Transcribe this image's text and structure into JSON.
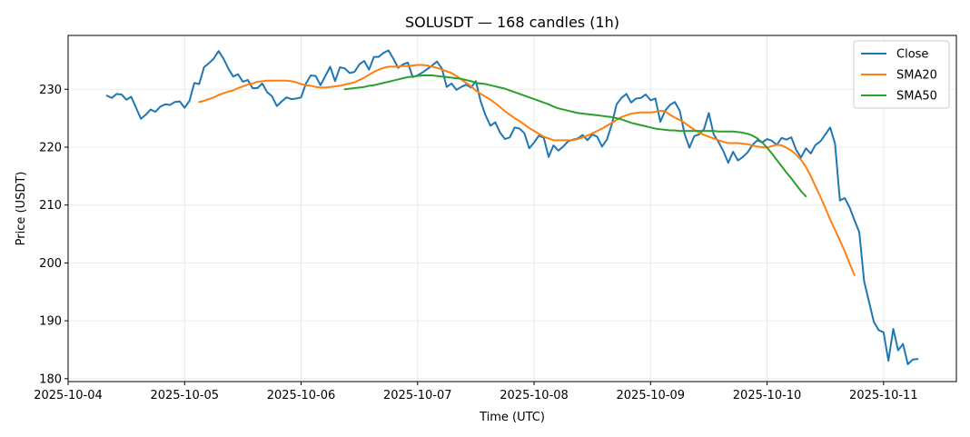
{
  "chart_data": {
    "type": "line",
    "title": "SOLUSDT — 168 candles (1h)",
    "xlabel": "Time (UTC)",
    "ylabel": "Price (USDT)",
    "x_ticks": [
      "2025-10-04",
      "2025-10-05",
      "2025-10-06",
      "2025-10-07",
      "2025-10-08",
      "2025-10-09",
      "2025-10-10",
      "2025-10-11"
    ],
    "x_range": [
      "2025-10-04 00:00",
      "2025-10-11 15:00"
    ],
    "y_ticks": [
      180,
      190,
      200,
      210,
      220,
      230
    ],
    "ylim": [
      179.5,
      239.3
    ],
    "grid": true,
    "legend_position": "top-right",
    "series": [
      {
        "name": "Close",
        "color": "#1f77b4",
        "start": "2025-10-04 08:00",
        "step_hours": 1,
        "values": [
          228.9,
          228.5,
          229.2,
          229.1,
          228.2,
          228.7,
          226.8,
          224.9,
          225.6,
          226.5,
          226.1,
          227.0,
          227.4,
          227.3,
          227.8,
          227.9,
          226.8,
          228.0,
          231.1,
          230.9,
          233.8,
          234.5,
          235.3,
          236.6,
          235.3,
          233.6,
          232.2,
          232.6,
          231.3,
          231.6,
          230.2,
          230.2,
          231.0,
          229.5,
          228.8,
          227.1,
          227.9,
          228.6,
          228.3,
          228.4,
          228.6,
          231.0,
          232.4,
          232.3,
          230.7,
          232.3,
          233.9,
          231.4,
          233.8,
          233.6,
          232.8,
          233.0,
          234.3,
          234.9,
          233.4,
          235.6,
          235.6,
          236.3,
          236.7,
          235.3,
          233.7,
          234.3,
          234.6,
          232.1,
          232.4,
          232.9,
          233.5,
          234.1,
          234.8,
          233.6,
          230.4,
          231.0,
          229.9,
          230.4,
          230.8,
          230.3,
          231.4,
          227.9,
          225.5,
          223.7,
          224.3,
          222.5,
          221.4,
          221.7,
          223.4,
          223.2,
          222.4,
          219.8,
          220.8,
          222.0,
          221.6,
          218.3,
          220.3,
          219.4,
          220.1,
          221.0,
          221.3,
          221.5,
          222.1,
          221.2,
          222.2,
          221.8,
          220.1,
          221.3,
          223.9,
          227.4,
          228.5,
          229.2,
          227.7,
          228.4,
          228.5,
          229.1,
          228.1,
          228.4,
          224.4,
          226.3,
          227.3,
          227.8,
          226.3,
          222.3,
          219.9,
          221.9,
          222.2,
          223.1,
          225.9,
          222.2,
          220.9,
          219.3,
          217.3,
          219.2,
          217.7,
          218.3,
          219.1,
          220.4,
          221.2,
          220.8,
          221.4,
          221.1,
          220.4,
          221.6,
          221.3,
          221.7,
          219.5,
          218.2,
          219.8,
          218.9,
          220.4,
          221.0,
          222.2,
          223.4,
          220.6,
          210.8,
          211.2,
          209.6,
          207.4,
          205.3,
          196.8,
          193.3,
          189.8,
          188.4,
          188.0,
          183.1,
          188.6,
          184.9,
          186.0,
          182.5,
          183.3,
          183.4
        ]
      },
      {
        "name": "SMA20",
        "color": "#ff7f0e",
        "start": "2025-10-05 03:00",
        "step_hours": 1,
        "values": [
          227.8,
          228.0,
          228.3,
          228.6,
          229.0,
          229.3,
          229.6,
          229.8,
          230.2,
          230.5,
          230.8,
          231.0,
          231.3,
          231.4,
          231.5,
          231.5,
          231.5,
          231.5,
          231.5,
          231.4,
          231.2,
          230.9,
          230.7,
          230.6,
          230.4,
          230.3,
          230.3,
          230.4,
          230.5,
          230.6,
          230.8,
          231.0,
          231.2,
          231.6,
          232.0,
          232.5,
          233.0,
          233.4,
          233.7,
          233.9,
          233.9,
          233.9,
          234.0,
          234.0,
          234.1,
          234.2,
          234.2,
          234.1,
          233.9,
          233.7,
          233.4,
          233.1,
          232.8,
          232.3,
          231.7,
          231.1,
          230.5,
          229.8,
          229.2,
          228.7,
          228.2,
          227.6,
          226.9,
          226.2,
          225.6,
          225.0,
          224.5,
          223.9,
          223.3,
          222.8,
          222.3,
          221.8,
          221.5,
          221.2,
          221.2,
          221.2,
          221.2,
          221.2,
          221.4,
          221.7,
          222.0,
          222.4,
          222.8,
          223.2,
          223.7,
          224.2,
          224.7,
          225.2,
          225.5,
          225.8,
          225.9,
          226.0,
          226.0,
          226.0,
          226.1,
          226.3,
          226.2,
          225.6,
          225.1,
          224.7,
          224.2,
          223.6,
          223.0,
          222.5,
          222.1,
          221.8,
          221.5,
          221.2,
          220.9,
          220.7,
          220.7,
          220.7,
          220.6,
          220.5,
          220.3,
          220.1,
          220.0,
          219.9,
          220.2,
          220.4,
          220.3,
          219.9,
          219.4,
          218.7,
          217.8,
          216.6,
          215.0,
          213.2,
          211.4,
          209.5,
          207.5,
          205.7,
          203.9,
          202.0,
          199.9,
          197.9
        ]
      },
      {
        "name": "SMA50",
        "color": "#2ca02c",
        "start": "2025-10-06 09:00",
        "step_hours": 1,
        "values": [
          230.0,
          230.1,
          230.2,
          230.3,
          230.4,
          230.6,
          230.7,
          230.9,
          231.1,
          231.3,
          231.5,
          231.7,
          231.9,
          232.1,
          232.2,
          232.3,
          232.4,
          232.4,
          232.4,
          232.3,
          232.2,
          232.1,
          232.0,
          231.9,
          231.8,
          231.6,
          231.4,
          231.1,
          231.0,
          230.9,
          230.7,
          230.5,
          230.3,
          230.1,
          229.8,
          229.5,
          229.2,
          228.9,
          228.6,
          228.3,
          228.0,
          227.7,
          227.4,
          227.0,
          226.7,
          226.5,
          226.3,
          226.1,
          225.9,
          225.8,
          225.7,
          225.6,
          225.5,
          225.4,
          225.3,
          225.2,
          225.0,
          224.8,
          224.5,
          224.2,
          224.0,
          223.8,
          223.6,
          223.4,
          223.2,
          223.1,
          223.0,
          222.9,
          222.9,
          222.8,
          222.8,
          222.8,
          222.8,
          222.8,
          222.8,
          222.8,
          222.8,
          222.7,
          222.7,
          222.7,
          222.7,
          222.6,
          222.5,
          222.3,
          222.0,
          221.5,
          220.8,
          219.9,
          218.9,
          217.8,
          216.7,
          215.6,
          214.6,
          213.5,
          212.4,
          211.5
        ]
      }
    ]
  }
}
